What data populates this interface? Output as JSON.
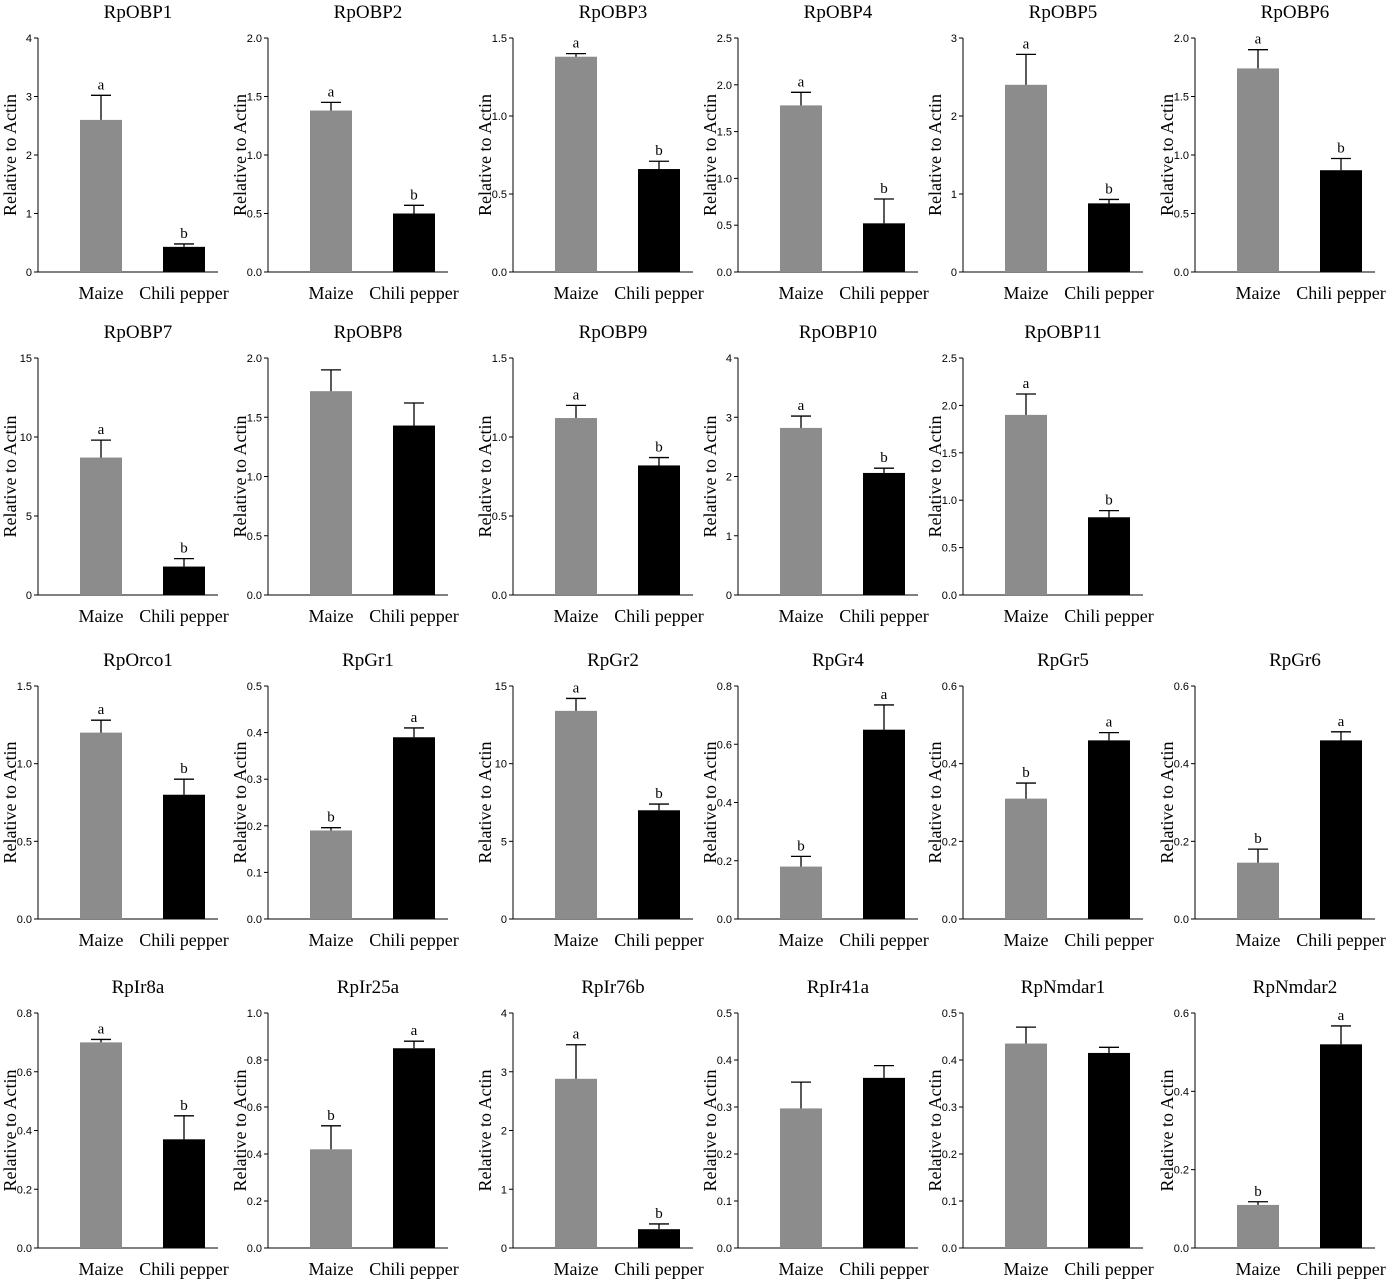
{
  "figure": {
    "colors": {
      "maize": "#8c8c8c",
      "chili": "#000000",
      "axis": "#000000"
    }
  },
  "chart_data": [
    {
      "type": "bar",
      "title": "RpOBP1",
      "ylabel": "Relative to Actin",
      "categories": [
        "Maize",
        "Chili pepper"
      ],
      "values": [
        2.6,
        0.43
      ],
      "errors": [
        0.42,
        0.05
      ],
      "letters": [
        "a",
        "b"
      ],
      "ylim": [
        0,
        4
      ],
      "yticks": [
        "0",
        "1",
        "2",
        "3",
        "4"
      ]
    },
    {
      "type": "bar",
      "title": "RpOBP2",
      "ylabel": "Relative to Actin",
      "categories": [
        "Maize",
        "Chili pepper"
      ],
      "values": [
        1.38,
        0.5
      ],
      "errors": [
        0.07,
        0.07
      ],
      "letters": [
        "a",
        "b"
      ],
      "ylim": [
        0,
        2.0
      ],
      "yticks": [
        "0.0",
        "0.5",
        "1.0",
        "1.5",
        "2.0"
      ]
    },
    {
      "type": "bar",
      "title": "RpOBP3",
      "ylabel": "Relative to Actin",
      "categories": [
        "Maize",
        "Chili pepper"
      ],
      "values": [
        1.38,
        0.66
      ],
      "errors": [
        0.02,
        0.05
      ],
      "letters": [
        "a",
        "b"
      ],
      "ylim": [
        0,
        1.5
      ],
      "yticks": [
        "0.0",
        "0.5",
        "1.0",
        "1.5"
      ]
    },
    {
      "type": "bar",
      "title": "RpOBP4",
      "ylabel": "Relative to Actin",
      "categories": [
        "Maize",
        "Chili pepper"
      ],
      "values": [
        1.78,
        0.52
      ],
      "errors": [
        0.14,
        0.26
      ],
      "letters": [
        "a",
        "b"
      ],
      "ylim": [
        0,
        2.5
      ],
      "yticks": [
        "0.0",
        "0.5",
        "1.0",
        "1.5",
        "2.0",
        "2.5"
      ]
    },
    {
      "type": "bar",
      "title": "RpOBP5",
      "ylabel": "Relative to Actin",
      "categories": [
        "Maize",
        "Chili pepper"
      ],
      "values": [
        2.4,
        0.88
      ],
      "errors": [
        0.39,
        0.05
      ],
      "letters": [
        "a",
        "b"
      ],
      "ylim": [
        0,
        3
      ],
      "yticks": [
        "0",
        "1",
        "2",
        "3"
      ]
    },
    {
      "type": "bar",
      "title": "RpOBP6",
      "ylabel": "Relative to Actin",
      "categories": [
        "Maize",
        "Chili pepper"
      ],
      "values": [
        1.74,
        0.87
      ],
      "errors": [
        0.16,
        0.1
      ],
      "letters": [
        "a",
        "b"
      ],
      "ylim": [
        0,
        2.0
      ],
      "yticks": [
        "0.0",
        "0.5",
        "1.0",
        "1.5",
        "2.0"
      ]
    },
    {
      "type": "bar",
      "title": "RpOBP7",
      "ylabel": "Relative to Actin",
      "categories": [
        "Maize",
        "Chili pepper"
      ],
      "values": [
        8.7,
        1.8
      ],
      "errors": [
        1.1,
        0.5
      ],
      "letters": [
        "a",
        "b"
      ],
      "ylim": [
        0,
        15
      ],
      "yticks": [
        "0",
        "5",
        "10",
        "15"
      ]
    },
    {
      "type": "bar",
      "title": "RpOBP8",
      "ylabel": "Relative to Actin",
      "categories": [
        "Maize",
        "Chili pepper"
      ],
      "values": [
        1.72,
        1.43
      ],
      "errors": [
        0.18,
        0.19
      ],
      "letters": [
        "",
        ""
      ],
      "ylim": [
        0,
        2.0
      ],
      "yticks": [
        "0.0",
        "0.5",
        "1.0",
        "1.5",
        "2.0"
      ]
    },
    {
      "type": "bar",
      "title": "RpOBP9",
      "ylabel": "Relative to Actin",
      "categories": [
        "Maize",
        "Chili pepper"
      ],
      "values": [
        1.12,
        0.82
      ],
      "errors": [
        0.08,
        0.05
      ],
      "letters": [
        "a",
        "b"
      ],
      "ylim": [
        0,
        1.5
      ],
      "yticks": [
        "0.0",
        "0.5",
        "1.0",
        "1.5"
      ]
    },
    {
      "type": "bar",
      "title": "RpOBP10",
      "ylabel": "Relative to Actin",
      "categories": [
        "Maize",
        "Chili pepper"
      ],
      "values": [
        2.82,
        2.06
      ],
      "errors": [
        0.2,
        0.08
      ],
      "letters": [
        "a",
        "b"
      ],
      "ylim": [
        0,
        4
      ],
      "yticks": [
        "0",
        "1",
        "2",
        "3",
        "4"
      ]
    },
    {
      "type": "bar",
      "title": "RpOBP11",
      "ylabel": "Relative to Actin",
      "categories": [
        "Maize",
        "Chili pepper"
      ],
      "values": [
        1.9,
        0.82
      ],
      "errors": [
        0.22,
        0.07
      ],
      "letters": [
        "a",
        "b"
      ],
      "ylim": [
        0,
        2.5
      ],
      "yticks": [
        "0.0",
        "0.5",
        "1.0",
        "1.5",
        "2.0",
        "2.5"
      ]
    },
    null,
    {
      "type": "bar",
      "title": "RpOrco1",
      "ylabel": "Relative to Actin",
      "categories": [
        "Maize",
        "Chili pepper"
      ],
      "values": [
        1.2,
        0.8
      ],
      "errors": [
        0.08,
        0.1
      ],
      "letters": [
        "a",
        "b"
      ],
      "ylim": [
        0,
        1.5
      ],
      "yticks": [
        "0.0",
        "0.5",
        "1.0",
        "1.5"
      ]
    },
    {
      "type": "bar",
      "title": "RpGr1",
      "ylabel": "Relative to Actin",
      "categories": [
        "Maize",
        "Chili pepper"
      ],
      "values": [
        0.19,
        0.39
      ],
      "errors": [
        0.006,
        0.02
      ],
      "letters": [
        "b",
        "a"
      ],
      "ylim": [
        0,
        0.5
      ],
      "yticks": [
        "0.0",
        "0.1",
        "0.2",
        "0.3",
        "0.4",
        "0.5"
      ]
    },
    {
      "type": "bar",
      "title": "RpGr2",
      "ylabel": "Relative to Actin",
      "categories": [
        "Maize",
        "Chili pepper"
      ],
      "values": [
        13.4,
        7.0
      ],
      "errors": [
        0.8,
        0.4
      ],
      "letters": [
        "a",
        "b"
      ],
      "ylim": [
        0,
        15
      ],
      "yticks": [
        "0",
        "5",
        "10",
        "15"
      ]
    },
    {
      "type": "bar",
      "title": "RpGr4",
      "ylabel": "Relative to Actin",
      "categories": [
        "Maize",
        "Chili pepper"
      ],
      "values": [
        0.18,
        0.65
      ],
      "errors": [
        0.035,
        0.085
      ],
      "letters": [
        "b",
        "a"
      ],
      "ylim": [
        0,
        0.8
      ],
      "yticks": [
        "0.0",
        "0.2",
        "0.4",
        "0.6",
        "0.8"
      ]
    },
    {
      "type": "bar",
      "title": "RpGr5",
      "ylabel": "Relative to Actin",
      "categories": [
        "Maize",
        "Chili pepper"
      ],
      "values": [
        0.31,
        0.46
      ],
      "errors": [
        0.04,
        0.02
      ],
      "letters": [
        "b",
        "a"
      ],
      "ylim": [
        0,
        0.6
      ],
      "yticks": [
        "0.0",
        "0.2",
        "0.4",
        "0.6"
      ]
    },
    {
      "type": "bar",
      "title": "RpGr6",
      "ylabel": "Relative to Actin",
      "categories": [
        "Maize",
        "Chili pepper"
      ],
      "values": [
        0.145,
        0.46
      ],
      "errors": [
        0.035,
        0.022
      ],
      "letters": [
        "b",
        "a"
      ],
      "ylim": [
        0,
        0.6
      ],
      "yticks": [
        "0.0",
        "0.2",
        "0.4",
        "0.6"
      ]
    },
    {
      "type": "bar",
      "title": "RpIr8a",
      "ylabel": "Relative to Actin",
      "categories": [
        "Maize",
        "Chili pepper"
      ],
      "values": [
        0.7,
        0.37
      ],
      "errors": [
        0.01,
        0.08
      ],
      "letters": [
        "a",
        "b"
      ],
      "ylim": [
        0,
        0.8
      ],
      "yticks": [
        "0.0",
        "0.2",
        "0.4",
        "0.6",
        "0.8"
      ]
    },
    {
      "type": "bar",
      "title": "RpIr25a",
      "ylabel": "Relative to Actin",
      "categories": [
        "Maize",
        "Chili pepper"
      ],
      "values": [
        0.42,
        0.85
      ],
      "errors": [
        0.1,
        0.03
      ],
      "letters": [
        "b",
        "a"
      ],
      "ylim": [
        0,
        1.0
      ],
      "yticks": [
        "0.0",
        "0.2",
        "0.4",
        "0.6",
        "0.8",
        "1.0"
      ]
    },
    {
      "type": "bar",
      "title": "RpIr76b",
      "ylabel": "Relative to Actin",
      "categories": [
        "Maize",
        "Chili pepper"
      ],
      "values": [
        2.88,
        0.32
      ],
      "errors": [
        0.58,
        0.09
      ],
      "letters": [
        "a",
        "b"
      ],
      "ylim": [
        0,
        4
      ],
      "yticks": [
        "0",
        "1",
        "2",
        "3",
        "4"
      ]
    },
    {
      "type": "bar",
      "title": "RpIr41a",
      "ylabel": "Relative to Actin",
      "categories": [
        "Maize",
        "Chili pepper"
      ],
      "values": [
        0.297,
        0.362
      ],
      "errors": [
        0.056,
        0.026
      ],
      "letters": [
        "",
        ""
      ],
      "ylim": [
        0,
        0.5
      ],
      "yticks": [
        "0.0",
        "0.1",
        "0.2",
        "0.3",
        "0.4",
        "0.5"
      ]
    },
    {
      "type": "bar",
      "title": "RpNmdar1",
      "ylabel": "Relative to Actin",
      "categories": [
        "Maize",
        "Chili pepper"
      ],
      "values": [
        0.435,
        0.415
      ],
      "errors": [
        0.035,
        0.012
      ],
      "letters": [
        "",
        ""
      ],
      "ylim": [
        0,
        0.5
      ],
      "yticks": [
        "0.0",
        "0.1",
        "0.2",
        "0.3",
        "0.4",
        "0.5"
      ]
    },
    {
      "type": "bar",
      "title": "RpNmdar2",
      "ylabel": "Relative to Actin",
      "categories": [
        "Maize",
        "Chili pepper"
      ],
      "values": [
        0.11,
        0.52
      ],
      "errors": [
        0.008,
        0.047
      ],
      "letters": [
        "b",
        "a"
      ],
      "ylim": [
        0,
        0.6
      ],
      "yticks": [
        "0.0",
        "0.2",
        "0.4",
        "0.6"
      ]
    }
  ]
}
